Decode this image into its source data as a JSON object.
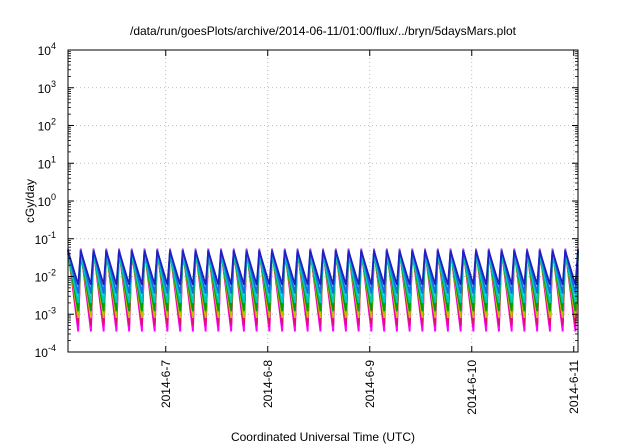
{
  "chart_data": {
    "type": "line",
    "title": "/data/run/goesPlots/archive/2014-06-11/01:00/flux/../bryn/5daysMars.plot",
    "xlabel": "Coordinated Universal Time (UTC)",
    "ylabel": "cGy/day",
    "yscale": "log",
    "ylim": [
      0.0001,
      10000
    ],
    "y_ticks": [
      {
        "value": 0.0001,
        "base": "10",
        "exp": "-4"
      },
      {
        "value": 0.001,
        "base": "10",
        "exp": "-3"
      },
      {
        "value": 0.01,
        "base": "10",
        "exp": "-2"
      },
      {
        "value": 0.1,
        "base": "10",
        "exp": "-1"
      },
      {
        "value": 1,
        "base": "10",
        "exp": "0"
      },
      {
        "value": 10,
        "base": "10",
        "exp": "1"
      },
      {
        "value": 100,
        "base": "10",
        "exp": "2"
      },
      {
        "value": 1000,
        "base": "10",
        "exp": "3"
      },
      {
        "value": 10000,
        "base": "10",
        "exp": "4"
      }
    ],
    "xlim": [
      "2014-06-06 01:00",
      "2014-06-11 01:00"
    ],
    "x_ticks": [
      {
        "date": "2014-06-07 00:00",
        "label": "2014-6-7"
      },
      {
        "date": "2014-06-08 00:00",
        "label": "2014-6-8"
      },
      {
        "date": "2014-06-09 00:00",
        "label": "2014-6-9"
      },
      {
        "date": "2014-06-10 00:00",
        "label": "2014-6-10"
      },
      {
        "date": "2014-06-11 00:00",
        "label": "2014-6-11"
      }
    ],
    "grid": true,
    "pattern": {
      "description_from_pixels": "sawtooth dose rate, period about 3 hours across all series",
      "period_hours": 3,
      "cycles": 40
    },
    "series": [
      {
        "color": "#ff00ff",
        "peak": 0.055,
        "trough": 0.00035
      },
      {
        "color": "#e01070",
        "peak": 0.05,
        "trough": 0.0005
      },
      {
        "color": "#c0c000",
        "peak": 0.045,
        "trough": 0.0008
      },
      {
        "color": "#00a000",
        "peak": 0.042,
        "trough": 0.0012
      },
      {
        "color": "#00c8c8",
        "peak": 0.04,
        "trough": 0.002
      },
      {
        "color": "#1070e0",
        "peak": 0.05,
        "trough": 0.0035
      },
      {
        "color": "#2020c0",
        "peak": 0.048,
        "trough": 0.006
      }
    ]
  }
}
